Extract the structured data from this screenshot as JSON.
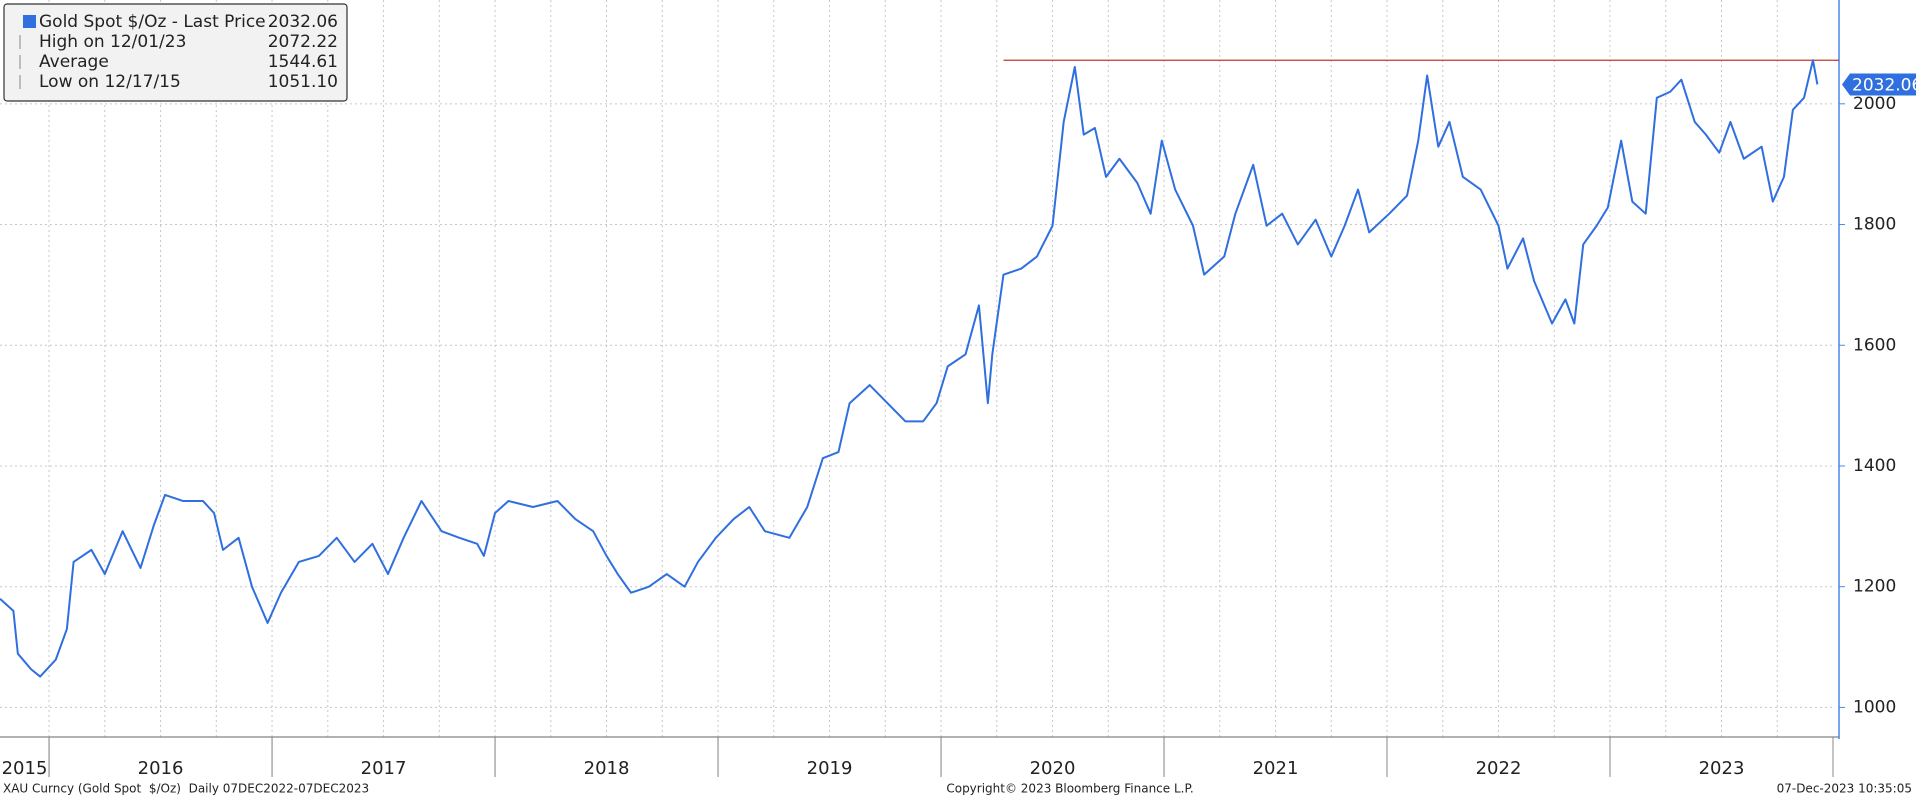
{
  "chart_data": {
    "type": "line",
    "x": [
      2015.78,
      2015.84,
      2015.86,
      2015.92,
      2015.96,
      2016.03,
      2016.08,
      2016.11,
      2016.19,
      2016.25,
      2016.33,
      2016.41,
      2016.47,
      2016.52,
      2016.6,
      2016.69,
      2016.74,
      2016.78,
      2016.85,
      2016.91,
      2016.98,
      2017.04,
      2017.12,
      2017.21,
      2017.29,
      2017.37,
      2017.45,
      2017.52,
      2017.59,
      2017.67,
      2017.76,
      2017.84,
      2017.92,
      2017.95,
      2018.0,
      2018.06,
      2018.17,
      2018.28,
      2018.36,
      2018.44,
      2018.5,
      2018.55,
      2018.61,
      2018.69,
      2018.77,
      2018.85,
      2018.91,
      2018.99,
      2019.07,
      2019.14,
      2019.21,
      2019.32,
      2019.4,
      2019.47,
      2019.54,
      2019.59,
      2019.68,
      2019.76,
      2019.84,
      2019.92,
      2019.98,
      2020.03,
      2020.11,
      2020.17,
      2020.21,
      2020.23,
      2020.28,
      2020.36,
      2020.43,
      2020.5,
      2020.55,
      2020.6,
      2020.64,
      2020.69,
      2020.74,
      2020.8,
      2020.88,
      2020.94,
      2020.99,
      2021.05,
      2021.13,
      2021.18,
      2021.27,
      2021.32,
      2021.4,
      2021.46,
      2021.53,
      2021.6,
      2021.68,
      2021.75,
      2021.81,
      2021.87,
      2021.92,
      2022.01,
      2022.09,
      2022.14,
      2022.18,
      2022.23,
      2022.28,
      2022.34,
      2022.42,
      2022.5,
      2022.54,
      2022.61,
      2022.66,
      2022.74,
      2022.8,
      2022.84,
      2022.88,
      2022.94,
      2022.99,
      2023.05,
      2023.1,
      2023.16,
      2023.21,
      2023.27,
      2023.32,
      2023.38,
      2023.43,
      2023.49,
      2023.54,
      2023.6,
      2023.68,
      2023.73,
      2023.78,
      2023.82,
      2023.87,
      2023.91,
      2023.93
    ],
    "series": [
      {
        "name": "Gold Spot $/Oz - Last Price",
        "color": "#2f6fdf",
        "values": [
          1180,
          1160,
          1089,
          1063,
          1051.1,
          1079,
          1130,
          1241,
          1261,
          1221,
          1292,
          1231,
          1302,
          1352,
          1342,
          1342,
          1322,
          1261,
          1281,
          1200,
          1140,
          1190,
          1241,
          1251,
          1281,
          1241,
          1271,
          1221,
          1281,
          1342,
          1292,
          1281,
          1271,
          1251,
          1322,
          1342,
          1332,
          1342,
          1312,
          1292,
          1251,
          1221,
          1190,
          1200,
          1221,
          1200,
          1241,
          1281,
          1312,
          1332,
          1292,
          1281,
          1332,
          1413,
          1423,
          1504,
          1534,
          1504,
          1474,
          1474,
          1504,
          1565,
          1585,
          1666,
          1504,
          1585,
          1717,
          1727,
          1747,
          1798,
          1970,
          2061,
          1949,
          1960,
          1879,
          1909,
          1869,
          1818,
          1939,
          1858,
          1798,
          1717,
          1747,
          1818,
          1899,
          1798,
          1818,
          1767,
          1808,
          1747,
          1798,
          1858,
          1787,
          1818,
          1848,
          1939,
          2047,
          1929,
          1970,
          1879,
          1858,
          1798,
          1727,
          1777,
          1706,
          1636,
          1676,
          1636,
          1767,
          1798,
          1828,
          1939,
          1838,
          1818,
          2010,
          2020,
          2040,
          1970,
          1949,
          1919,
          1970,
          1909,
          1929,
          1838,
          1879,
          1990,
          2010,
          2072.22,
          2032.06
        ]
      }
    ],
    "xlim": [
      2015.78,
      2024.0
    ],
    "xticks": [
      {
        "value": 2015,
        "label": "2015"
      },
      {
        "value": 2016,
        "label": "2016"
      },
      {
        "value": 2017,
        "label": "2017"
      },
      {
        "value": 2018,
        "label": "2018"
      },
      {
        "value": 2019,
        "label": "2019"
      },
      {
        "value": 2020,
        "label": "2020"
      },
      {
        "value": 2021,
        "label": "2021"
      },
      {
        "value": 2022,
        "label": "2022"
      },
      {
        "value": 2023,
        "label": "2023"
      }
    ],
    "xgrid": [
      2016,
      2016.25,
      2016.5,
      2016.75,
      2017,
      2017.25,
      2017.5,
      2017.75,
      2018,
      2018.25,
      2018.5,
      2018.75,
      2019,
      2019.25,
      2019.5,
      2019.75,
      2020,
      2020.25,
      2020.5,
      2020.75,
      2021,
      2021.25,
      2021.5,
      2021.75,
      2022,
      2022.25,
      2022.5,
      2022.75,
      2023,
      2023.25,
      2023.5,
      2023.75
    ],
    "ylim": [
      951,
      2172
    ],
    "yticks": [
      1000,
      1200,
      1400,
      1600,
      1800,
      2000
    ],
    "grid": true,
    "legend": [
      {
        "name": "Gold Spot $/Oz - Last Price",
        "value": 2032.06
      },
      {
        "name": "High on 12/01/23",
        "value": 2072.22
      },
      {
        "name": "Average",
        "value": 1544.61
      },
      {
        "name": "Low on 12/17/15",
        "value": 1051.1,
        "value_label": "1051.10"
      }
    ]
  },
  "footer": {
    "left": "XAU Curncy (Gold Spot  $/Oz)  Daily 07DEC2022-07DEC2023",
    "center": "Copyright© 2023 Bloomberg Finance L.P.",
    "right": "07-Dec-2023 10:35:05"
  }
}
